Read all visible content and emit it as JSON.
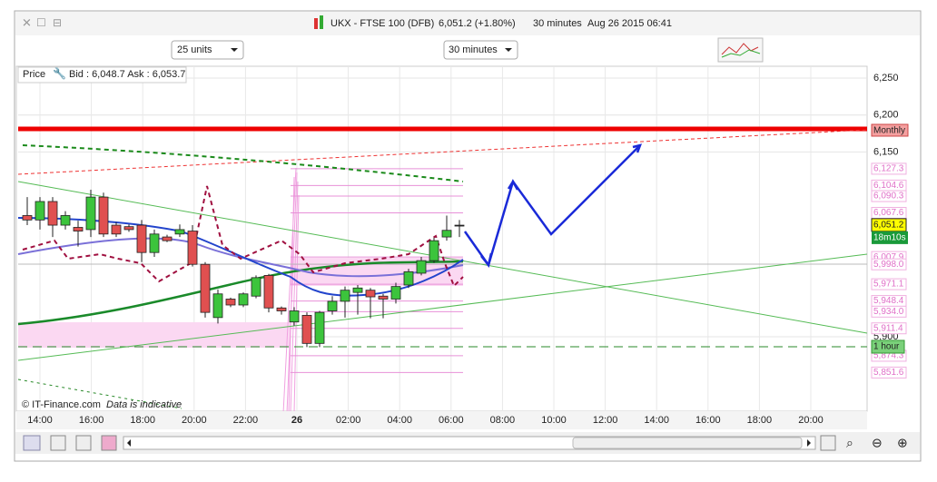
{
  "window": {
    "title": "UKX - FTSE 100 (DFB)",
    "price_change": "6,051.2 (+1.80%)",
    "interval": "30 minutes",
    "timestamp": "Aug 26 2015 06:41"
  },
  "toolbar": {
    "units": "25 units",
    "period": "30 minutes"
  },
  "price_panel": {
    "name": "Price",
    "quote": "Bid : 6,048.7 Ask : 6,053.7",
    "credit": "© IT-Finance.com",
    "note": "Data is indicative"
  },
  "yticks": [
    {
      "value": 6250,
      "label": "6,250"
    },
    {
      "value": 6200,
      "label": "6,200"
    },
    {
      "value": 6150,
      "label": "6,150"
    },
    {
      "value": 5900,
      "label": "5,900"
    }
  ],
  "price_levels": [
    {
      "value": 6127.3,
      "label": "6,127.3"
    },
    {
      "value": 6104.6,
      "label": "6,104.6"
    },
    {
      "value": 6090.3,
      "label": "6,090.3"
    },
    {
      "value": 6067.6,
      "label": "6,067.6"
    },
    {
      "value": 6007.9,
      "label": "6,007.9"
    },
    {
      "value": 5998.0,
      "label": "5,998.0"
    },
    {
      "value": 5971.1,
      "label": "5,971.1"
    },
    {
      "value": 5948.4,
      "label": "5,948.4"
    },
    {
      "value": 5934.0,
      "label": "5,934.0"
    },
    {
      "value": 5911.4,
      "label": "5,911.4"
    },
    {
      "value": 5874.3,
      "label": "5,874.3"
    },
    {
      "value": 5851.6,
      "label": "5,851.6"
    }
  ],
  "last_price": {
    "value": 6051.2,
    "label": "6,051.2",
    "countdown": "18m10s"
  },
  "markers": {
    "monthly": "Monthly",
    "hourly": "1 hour"
  },
  "x_labels": [
    "14:00",
    "16:00",
    "18:00",
    "20:00",
    "22:00",
    "26",
    "02:00",
    "04:00",
    "06:00",
    "08:00",
    "10:00",
    "12:00",
    "14:00",
    "16:00",
    "18:00",
    "20:00"
  ],
  "candles": [
    {
      "o": 6064,
      "h": 6089,
      "l": 6051,
      "c": 6058
    },
    {
      "o": 6058,
      "h": 6089,
      "l": 6045,
      "c": 6083
    },
    {
      "o": 6083,
      "h": 6089,
      "l": 6035,
      "c": 6051
    },
    {
      "o": 6051,
      "h": 6070,
      "l": 6045,
      "c": 6064
    },
    {
      "o": 6048,
      "h": 6057,
      "l": 6022,
      "c": 6043
    },
    {
      "o": 6045,
      "h": 6099,
      "l": 6035,
      "c": 6089
    },
    {
      "o": 6089,
      "h": 6095,
      "l": 6035,
      "c": 6039
    },
    {
      "o": 6051,
      "h": 6055,
      "l": 6035,
      "c": 6039
    },
    {
      "o": 6049,
      "h": 6052,
      "l": 6042,
      "c": 6045
    },
    {
      "o": 6051,
      "h": 6058,
      "l": 6001,
      "c": 6014
    },
    {
      "o": 6014,
      "h": 6045,
      "l": 6008,
      "c": 6039
    },
    {
      "o": 6035,
      "h": 6038,
      "l": 6028,
      "c": 6030
    },
    {
      "o": 6039,
      "h": 6052,
      "l": 6035,
      "c": 6045
    },
    {
      "o": 6043,
      "h": 6051,
      "l": 5995,
      "c": 5998
    },
    {
      "o": 5998,
      "h": 6001,
      "l": 5926,
      "c": 5933
    },
    {
      "o": 5926,
      "h": 5964,
      "l": 5918,
      "c": 5958
    },
    {
      "o": 5951,
      "h": 5953,
      "l": 5940,
      "c": 5943
    },
    {
      "o": 5943,
      "h": 5960,
      "l": 5940,
      "c": 5958
    },
    {
      "o": 5955,
      "h": 5983,
      "l": 5952,
      "c": 5980
    },
    {
      "o": 5983,
      "h": 5985,
      "l": 5933,
      "c": 5939
    },
    {
      "o": 5939,
      "h": 5941,
      "l": 5930,
      "c": 5935
    },
    {
      "o": 5920,
      "h": 5940,
      "l": 5915,
      "c": 5935
    },
    {
      "o": 5929,
      "h": 5933,
      "l": 5886,
      "c": 5891
    },
    {
      "o": 5891,
      "h": 5935,
      "l": 5886,
      "c": 5933
    },
    {
      "o": 5935,
      "h": 5955,
      "l": 5930,
      "c": 5948
    },
    {
      "o": 5948,
      "h": 5968,
      "l": 5926,
      "c": 5963
    },
    {
      "o": 5960,
      "h": 5970,
      "l": 5930,
      "c": 5966
    },
    {
      "o": 5963,
      "h": 5966,
      "l": 5925,
      "c": 5954
    },
    {
      "o": 5955,
      "h": 5958,
      "l": 5925,
      "c": 5951
    },
    {
      "o": 5951,
      "h": 5973,
      "l": 5945,
      "c": 5968
    },
    {
      "o": 5970,
      "h": 5992,
      "l": 5966,
      "c": 5988
    },
    {
      "o": 5986,
      "h": 6008,
      "l": 5983,
      "c": 6003
    },
    {
      "o": 6003,
      "h": 6034,
      "l": 6000,
      "c": 6030
    },
    {
      "o": 6035,
      "h": 6064,
      "l": 6030,
      "c": 6044
    },
    {
      "o": 6051,
      "h": 6058,
      "l": 6035,
      "c": 6051
    }
  ]
}
